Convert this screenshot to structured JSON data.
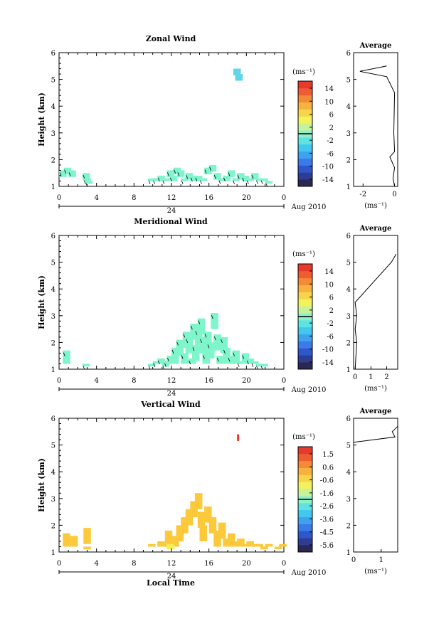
{
  "colors": {
    "scale": [
      "#2a2850",
      "#2e3c94",
      "#2f57cc",
      "#3a7be8",
      "#3fa2ef",
      "#42c7ef",
      "#5fe3e0",
      "#8ff0c8",
      "#c6f39a",
      "#f2f25c",
      "#f7d54a",
      "#f6b13e",
      "#f38a35",
      "#ef5c32",
      "#e83a2c"
    ],
    "wind_cell": "#7ff5cc",
    "vert_cell": "#fcc93a",
    "vert_hot": "#f0f050",
    "vert_top": "#e8362c",
    "zonal_top": "#5fd7e8"
  },
  "common": {
    "time_ticks": [
      "0",
      "4",
      "8",
      "12",
      "16",
      "20",
      "0"
    ],
    "day_label": "24",
    "month_label": "Aug 2010",
    "xlabel": "Local Time",
    "ylabel": "Height (km)",
    "height_ticks": [
      "1",
      "2",
      "3",
      "4",
      "5",
      "6"
    ],
    "unit": "(ms⁻¹)",
    "avg_title": "Average"
  },
  "chart_data": [
    {
      "type": "heatmap",
      "title": "Zonal Wind",
      "xlabel": "",
      "ylabel": "Height (km)",
      "xlim": [
        0,
        24
      ],
      "ylim": [
        1,
        6
      ],
      "colorbar": {
        "label": "(ms⁻¹)",
        "ticks": [
          "14",
          "10",
          "6",
          "2",
          "-2",
          "-6",
          "-10",
          "-14"
        ],
        "range": [
          -16,
          16
        ]
      },
      "cells": [
        [
          0.0,
          1.6
        ],
        [
          0.5,
          1.7
        ],
        [
          1.0,
          1.6
        ],
        [
          2.5,
          1.5
        ],
        [
          2.6,
          1.3
        ],
        [
          2.8,
          1.2
        ],
        [
          9.5,
          1.3
        ],
        [
          10.0,
          1.3
        ],
        [
          10.5,
          1.4
        ],
        [
          11.0,
          1.3
        ],
        [
          11.5,
          1.6
        ],
        [
          11.8,
          1.4
        ],
        [
          12.2,
          1.7
        ],
        [
          12.6,
          1.6
        ],
        [
          13.0,
          1.3
        ],
        [
          13.5,
          1.5
        ],
        [
          14.0,
          1.4
        ],
        [
          14.5,
          1.4
        ],
        [
          15.0,
          1.3
        ],
        [
          15.5,
          1.7
        ],
        [
          16.0,
          1.8
        ],
        [
          16.5,
          1.5
        ],
        [
          17.0,
          1.3
        ],
        [
          17.5,
          1.4
        ],
        [
          18.0,
          1.6
        ],
        [
          18.5,
          1.3
        ],
        [
          19.0,
          1.5
        ],
        [
          19.5,
          1.4
        ],
        [
          20.0,
          1.3
        ],
        [
          20.5,
          1.5
        ],
        [
          21.0,
          1.3
        ],
        [
          21.5,
          1.3
        ],
        [
          22.0,
          1.2
        ],
        [
          18.6,
          5.4
        ],
        [
          18.8,
          5.2
        ]
      ],
      "average": {
        "title": "Average",
        "xlabel": "(ms⁻¹)",
        "xticks": [
          "-2",
          "0"
        ],
        "xlim": [
          -2.6,
          0.2
        ],
        "profile": [
          [
            0.0,
            1.0
          ],
          [
            -0.1,
            1.3
          ],
          [
            0.0,
            1.7
          ],
          [
            -0.3,
            2.1
          ],
          [
            0.0,
            2.3
          ],
          [
            -0.05,
            3.0
          ],
          [
            0.0,
            4.5
          ],
          [
            -0.5,
            5.1
          ],
          [
            -2.2,
            5.3
          ],
          [
            -0.5,
            5.5
          ]
        ]
      }
    },
    {
      "type": "heatmap",
      "title": "Meridional Wind",
      "xlabel": "",
      "ylabel": "Height (km)",
      "xlim": [
        0,
        24
      ],
      "ylim": [
        1,
        6
      ],
      "colorbar": {
        "label": "(ms⁻¹)",
        "ticks": [
          "14",
          "10",
          "6",
          "2",
          "-2",
          "-6",
          "-10",
          "-14"
        ],
        "range": [
          -16,
          16
        ]
      },
      "cells": [
        [
          0.4,
          1.7
        ],
        [
          2.5,
          1.2
        ],
        [
          9.5,
          1.2
        ],
        [
          10.0,
          1.3
        ],
        [
          10.5,
          1.4
        ],
        [
          11.0,
          1.2
        ],
        [
          11.5,
          1.5
        ],
        [
          12.0,
          1.8
        ],
        [
          12.5,
          2.1
        ],
        [
          13.0,
          1.6
        ],
        [
          13.2,
          2.4
        ],
        [
          13.5,
          2.2
        ],
        [
          14.0,
          2.7
        ],
        [
          14.2,
          1.9
        ],
        [
          14.5,
          2.5
        ],
        [
          14.8,
          2.9
        ],
        [
          15.0,
          2.2
        ],
        [
          15.3,
          1.6
        ],
        [
          15.5,
          2.4
        ],
        [
          15.8,
          2.0
        ],
        [
          16.2,
          3.1
        ],
        [
          16.5,
          2.3
        ],
        [
          16.8,
          1.5
        ],
        [
          17.2,
          2.2
        ],
        [
          17.5,
          1.8
        ],
        [
          18.0,
          1.5
        ],
        [
          18.5,
          1.7
        ],
        [
          19.0,
          1.3
        ],
        [
          19.5,
          1.6
        ],
        [
          20.0,
          1.4
        ],
        [
          20.5,
          1.3
        ],
        [
          21.0,
          1.2
        ],
        [
          21.5,
          1.2
        ],
        [
          11.2,
          1.3
        ],
        [
          13.8,
          1.4
        ]
      ],
      "average": {
        "title": "Average",
        "xlabel": "(ms⁻¹)",
        "xticks": [
          "0",
          "1",
          "2"
        ],
        "xlim": [
          -0.1,
          2.7
        ],
        "profile": [
          [
            0.0,
            1.0
          ],
          [
            0.05,
            1.5
          ],
          [
            0.1,
            2.0
          ],
          [
            0.0,
            2.5
          ],
          [
            0.1,
            3.0
          ],
          [
            0.0,
            3.5
          ],
          [
            2.3,
            5.0
          ],
          [
            2.6,
            5.3
          ]
        ]
      }
    },
    {
      "type": "heatmap",
      "title": "Vertical Wind",
      "xlabel": "Local Time",
      "ylabel": "Height (km)",
      "xlim": [
        0,
        24
      ],
      "ylim": [
        1,
        6
      ],
      "colorbar": {
        "label": "(ms⁻¹)",
        "ticks": [
          "1.5",
          "0.6",
          "-0.6",
          "-1.6",
          "-2.6",
          "-3.6",
          "-4.5",
          "-5.6"
        ],
        "range": [
          -6,
          2
        ]
      },
      "cells": [
        [
          0.4,
          1.7
        ],
        [
          1.2,
          1.6
        ],
        [
          2.6,
          1.9
        ],
        [
          2.6,
          1.2
        ],
        [
          9.5,
          1.3
        ],
        [
          10.5,
          1.4
        ],
        [
          11.0,
          1.3
        ],
        [
          11.3,
          1.8
        ],
        [
          12.0,
          1.6
        ],
        [
          12.5,
          2.0
        ],
        [
          13.0,
          2.3
        ],
        [
          13.5,
          2.6
        ],
        [
          14.0,
          2.9
        ],
        [
          14.5,
          3.2
        ],
        [
          14.8,
          2.5
        ],
        [
          15.0,
          2.0
        ],
        [
          15.5,
          2.7
        ],
        [
          16.0,
          2.3
        ],
        [
          16.5,
          1.8
        ],
        [
          17.0,
          2.1
        ],
        [
          17.5,
          1.5
        ],
        [
          18.0,
          1.7
        ],
        [
          18.5,
          1.4
        ],
        [
          19.0,
          1.5
        ],
        [
          19.5,
          1.3
        ],
        [
          20.0,
          1.4
        ],
        [
          20.5,
          1.3
        ],
        [
          21.0,
          1.3
        ],
        [
          21.5,
          1.2
        ],
        [
          22.0,
          1.3
        ],
        [
          23.0,
          1.2
        ],
        [
          23.5,
          1.3
        ]
      ],
      "hot": [
        [
          11.5,
          1.3
        ]
      ],
      "top": [
        [
          19.0,
          5.4
        ]
      ],
      "average": {
        "title": "Average",
        "xlabel": "(ms⁻¹)",
        "xticks": [
          "0",
          "1"
        ],
        "xlim": [
          0,
          1.6
        ],
        "profile": [
          [
            0.0,
            5.1
          ],
          [
            1.5,
            5.3
          ],
          [
            1.4,
            5.5
          ],
          [
            1.6,
            5.7
          ]
        ]
      }
    }
  ]
}
